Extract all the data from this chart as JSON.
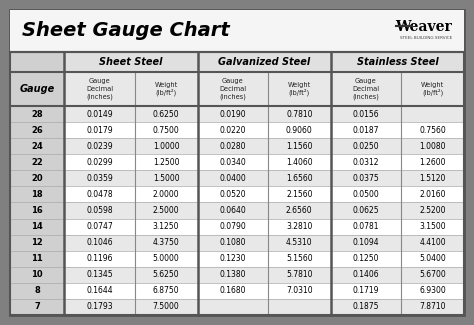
{
  "title": "Sheet Gauge Chart",
  "bg_outer": "#808080",
  "bg_white": "#ffffff",
  "bg_title": "#ffffff",
  "col_headers": [
    "Sheet Steel",
    "Galvanized Steel",
    "Stainless Steel"
  ],
  "gauges": [
    28,
    26,
    24,
    22,
    20,
    18,
    16,
    14,
    12,
    11,
    10,
    8,
    7
  ],
  "sheet_steel": [
    [
      "0.0149",
      "0.6250"
    ],
    [
      "0.0179",
      "0.7500"
    ],
    [
      "0.0239",
      "1.0000"
    ],
    [
      "0.0299",
      "1.2500"
    ],
    [
      "0.0359",
      "1.5000"
    ],
    [
      "0.0478",
      "2.0000"
    ],
    [
      "0.0598",
      "2.5000"
    ],
    [
      "0.0747",
      "3.1250"
    ],
    [
      "0.1046",
      "4.3750"
    ],
    [
      "0.1196",
      "5.0000"
    ],
    [
      "0.1345",
      "5.6250"
    ],
    [
      "0.1644",
      "6.8750"
    ],
    [
      "0.1793",
      "7.5000"
    ]
  ],
  "galvanized_steel": [
    [
      "0.0190",
      "0.7810"
    ],
    [
      "0.0220",
      "0.9060"
    ],
    [
      "0.0280",
      "1.1560"
    ],
    [
      "0.0340",
      "1.4060"
    ],
    [
      "0.0400",
      "1.6560"
    ],
    [
      "0.0520",
      "2.1560"
    ],
    [
      "0.0640",
      "2.6560"
    ],
    [
      "0.0790",
      "3.2810"
    ],
    [
      "0.1080",
      "4.5310"
    ],
    [
      "0.1230",
      "5.1560"
    ],
    [
      "0.1380",
      "5.7810"
    ],
    [
      "0.1680",
      "7.0310"
    ],
    [
      "",
      ""
    ]
  ],
  "stainless_steel": [
    [
      "0.0156",
      ""
    ],
    [
      "0.0187",
      "0.7560"
    ],
    [
      "0.0250",
      "1.0080"
    ],
    [
      "0.0312",
      "1.2600"
    ],
    [
      "0.0375",
      "1.5120"
    ],
    [
      "0.0500",
      "2.0160"
    ],
    [
      "0.0625",
      "2.5200"
    ],
    [
      "0.0781",
      "3.1500"
    ],
    [
      "0.1094",
      "4.4100"
    ],
    [
      "0.1250",
      "5.0400"
    ],
    [
      "0.1406",
      "5.6700"
    ],
    [
      "0.1719",
      "6.9300"
    ],
    [
      "0.1875",
      "7.8710"
    ]
  ],
  "row_colors": [
    "#e8e8e8",
    "#ffffff"
  ],
  "gauge_col_color": "#d0d0d0",
  "header1_color": "#e0e0e0",
  "header2_color": "#e8e8e8",
  "border_color": "#555555",
  "inner_border": "#888888",
  "title_fontsize": 14,
  "header_fontsize": 7,
  "subheader_fontsize": 4.8,
  "data_fontsize": 5.5,
  "gauge_fontsize": 6.0
}
